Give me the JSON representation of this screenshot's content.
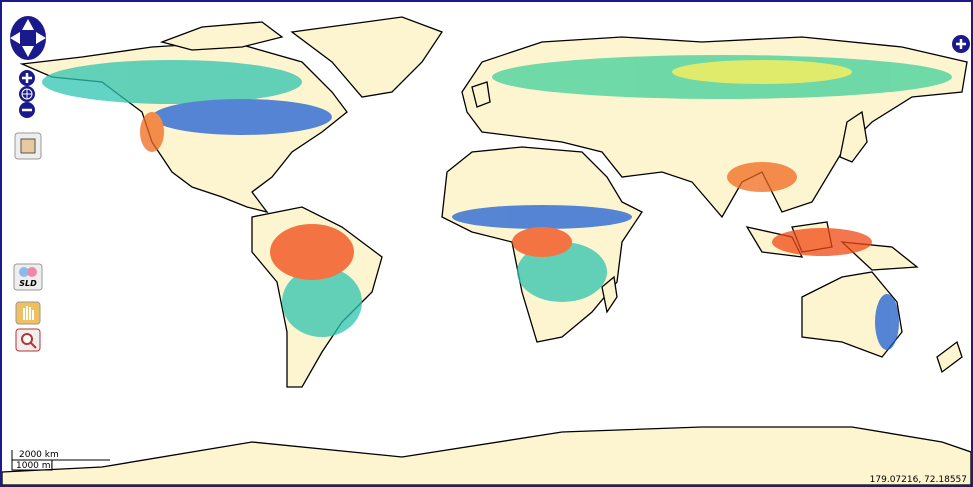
{
  "controls": {
    "sld_label": "SLD"
  },
  "scale_line": {
    "top": "2000 km",
    "bottom": "1000 mi"
  },
  "mouse_position": "179.07216, 72.18557"
}
